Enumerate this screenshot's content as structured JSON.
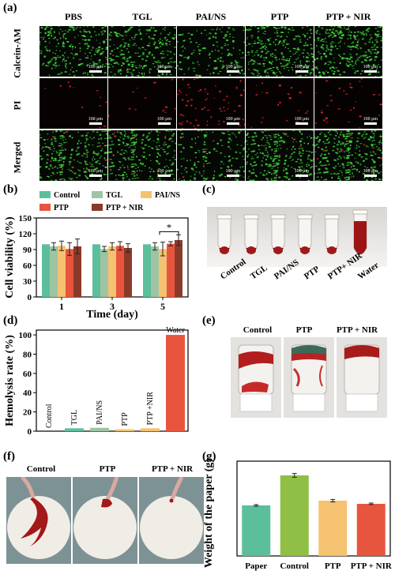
{
  "panel_a": {
    "label": "(a)",
    "columns": [
      "PBS",
      "TGL",
      "PAI/NS",
      "PTP",
      "PTP + NIR"
    ],
    "rows": [
      "Calcein-AM",
      "PI",
      "Merged"
    ],
    "scale_labels": [
      [
        "100 μm",
        "100 μm",
        "100 μm",
        "100 μm",
        "100 μm"
      ],
      [
        "100 μm",
        "100 μm",
        "100 μm",
        "100 μm",
        "100 μm"
      ],
      [
        "100 μm",
        "100 μm",
        "100 μm",
        "100 μm",
        "100 μm"
      ]
    ]
  },
  "panel_b": {
    "label": "(b)"
  },
  "panel_c": {
    "label": "(c)",
    "tubes": [
      "Control",
      "TGL",
      "PAI/NS",
      "PTP",
      "PTP+ NIR",
      "Water"
    ]
  },
  "panel_d": {
    "label": "(d)"
  },
  "panel_e": {
    "label": "(e)",
    "vials": [
      "Control",
      "PTP",
      "PTP + NIR"
    ]
  },
  "panel_f": {
    "label": "(f)",
    "papers": [
      "Control",
      "PTP",
      "PTP + NIR"
    ]
  },
  "panel_g": {
    "label": "(g)"
  },
  "chart_data": [
    {
      "id": "b",
      "type": "bar",
      "categories": [
        "1",
        "3",
        "5"
      ],
      "xlabel": "Time (day)",
      "ylabel": "Cell viability (%)",
      "ylim": [
        0,
        150
      ],
      "yticks": [
        0,
        30,
        60,
        90,
        120,
        150
      ],
      "legend": "top",
      "significance": {
        "label": "*",
        "between": [
          "PTP",
          "PTP + NIR"
        ],
        "category": "5"
      },
      "series": [
        {
          "name": "Control",
          "color": "#5bbf9b",
          "values": [
            100,
            100,
            100
          ],
          "errors": [
            0,
            0,
            0
          ]
        },
        {
          "name": "TGL",
          "color": "#9fc4a3",
          "values": [
            96,
            91,
            96
          ],
          "errors": [
            7,
            5,
            7
          ]
        },
        {
          "name": "PAI/NS",
          "color": "#f5c271",
          "values": [
            97,
            96,
            91
          ],
          "errors": [
            9,
            7,
            13
          ]
        },
        {
          "name": "PTP",
          "color": "#e8553f",
          "values": [
            91,
            97,
            101
          ],
          "errors": [
            12,
            8,
            4
          ]
        },
        {
          "name": "PTP + NIR",
          "color": "#8b3a2a",
          "values": [
            96,
            93,
            108
          ],
          "errors": [
            14,
            8,
            10
          ]
        }
      ]
    },
    {
      "id": "d",
      "type": "bar",
      "categories": [
        "Control",
        "TGL",
        "PAI/NS",
        "PTP",
        "PTP +NIR",
        "Water"
      ],
      "ylabel": "Hemolysis rate (%)",
      "ylim": [
        0,
        105
      ],
      "yticks": [
        0,
        20,
        40,
        60,
        80,
        100
      ],
      "colors": [
        "#5bbf9b",
        "#5bbf9b",
        "#9fc4a3",
        "#f5c271",
        "#f5c271",
        "#e8553f"
      ],
      "values": [
        0,
        3,
        3.5,
        2,
        3,
        100
      ]
    },
    {
      "id": "g",
      "type": "bar",
      "categories": [
        "Paper",
        "Control",
        "PTP",
        "PTP + NIR"
      ],
      "ylabel": "Weight of the paper (g)",
      "ylim": [
        0.3,
        0.9
      ],
      "colors": [
        "#5bbf9b",
        "#8fbf45",
        "#f5c271",
        "#e8553f"
      ],
      "values": [
        0.62,
        0.81,
        0.65,
        0.63
      ],
      "errors": [
        0.005,
        0.012,
        0.008,
        0.005
      ]
    }
  ]
}
